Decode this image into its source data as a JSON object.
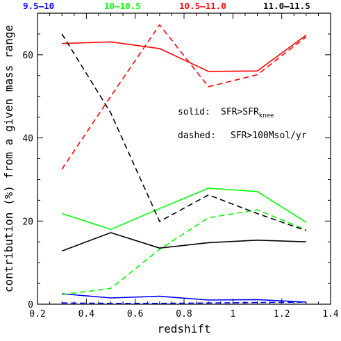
{
  "chart_data": {
    "type": "line",
    "xlabel": "redshift",
    "ylabel": "contribution (%) from a given mass range",
    "xlim": [
      0.2,
      1.4
    ],
    "ylim": [
      0,
      70
    ],
    "xticks": [
      "0.2",
      "0.4",
      "0.6",
      "0.8",
      "1",
      "1.2",
      "1.4"
    ],
    "yticks": [
      "0",
      "20",
      "40",
      "60"
    ],
    "x": [
      0.3,
      0.5,
      0.7,
      0.9,
      1.1,
      1.3
    ],
    "legend": {
      "placement": "top",
      "entries": [
        {
          "label": "9.5–10",
          "color": "#0000ff"
        },
        {
          "label": "10–10.5",
          "color": "#00ff00"
        },
        {
          "label": "10.5–11.0",
          "color": "#ff0000"
        },
        {
          "label": "11.0–11.5",
          "color": "#000000"
        }
      ]
    },
    "annotations": {
      "solid_prefix": "solid:",
      "solid_text": "SFR>SFR",
      "solid_subscript": "knee",
      "dashed_prefix": "dashed:",
      "dashed_text": "SFR>100Msol/yr"
    },
    "series": [
      {
        "mass_bin": "9.5–10",
        "style": "solid",
        "color": "#0000ff",
        "values": [
          2.5,
          1.5,
          1.9,
          1.0,
          1.1,
          0.5
        ]
      },
      {
        "mass_bin": "9.5–10",
        "style": "dashed",
        "color": "#0000ff",
        "values": [
          0.3,
          0.2,
          0.2,
          0.3,
          0.4,
          0.5
        ]
      },
      {
        "mass_bin": "10–10.5",
        "style": "solid",
        "color": "#00ff00",
        "values": [
          21.8,
          18.0,
          23.0,
          27.9,
          27.1,
          19.7
        ]
      },
      {
        "mass_bin": "10–10.5",
        "style": "dashed",
        "color": "#00ff00",
        "values": [
          2.3,
          3.8,
          13.2,
          20.8,
          22.7,
          17.9
        ]
      },
      {
        "mass_bin": "10.5–11.0",
        "style": "solid",
        "color": "#ff0000",
        "values": [
          62.7,
          63.1,
          61.5,
          56.0,
          56.1,
          64.7
        ]
      },
      {
        "mass_bin": "10.5–11.0",
        "style": "dashed",
        "color": "#ff0000",
        "values": [
          32.5,
          50.0,
          67.2,
          52.3,
          55.2,
          64.3
        ]
      },
      {
        "mass_bin": "11.0–11.5",
        "style": "solid",
        "color": "#000000",
        "values": [
          12.8,
          17.2,
          13.5,
          14.8,
          15.4,
          15.0
        ]
      },
      {
        "mass_bin": "11.0–11.5",
        "style": "dashed",
        "color": "#000000",
        "values": [
          65.0,
          46.0,
          19.9,
          26.3,
          21.8,
          17.7
        ]
      }
    ]
  }
}
